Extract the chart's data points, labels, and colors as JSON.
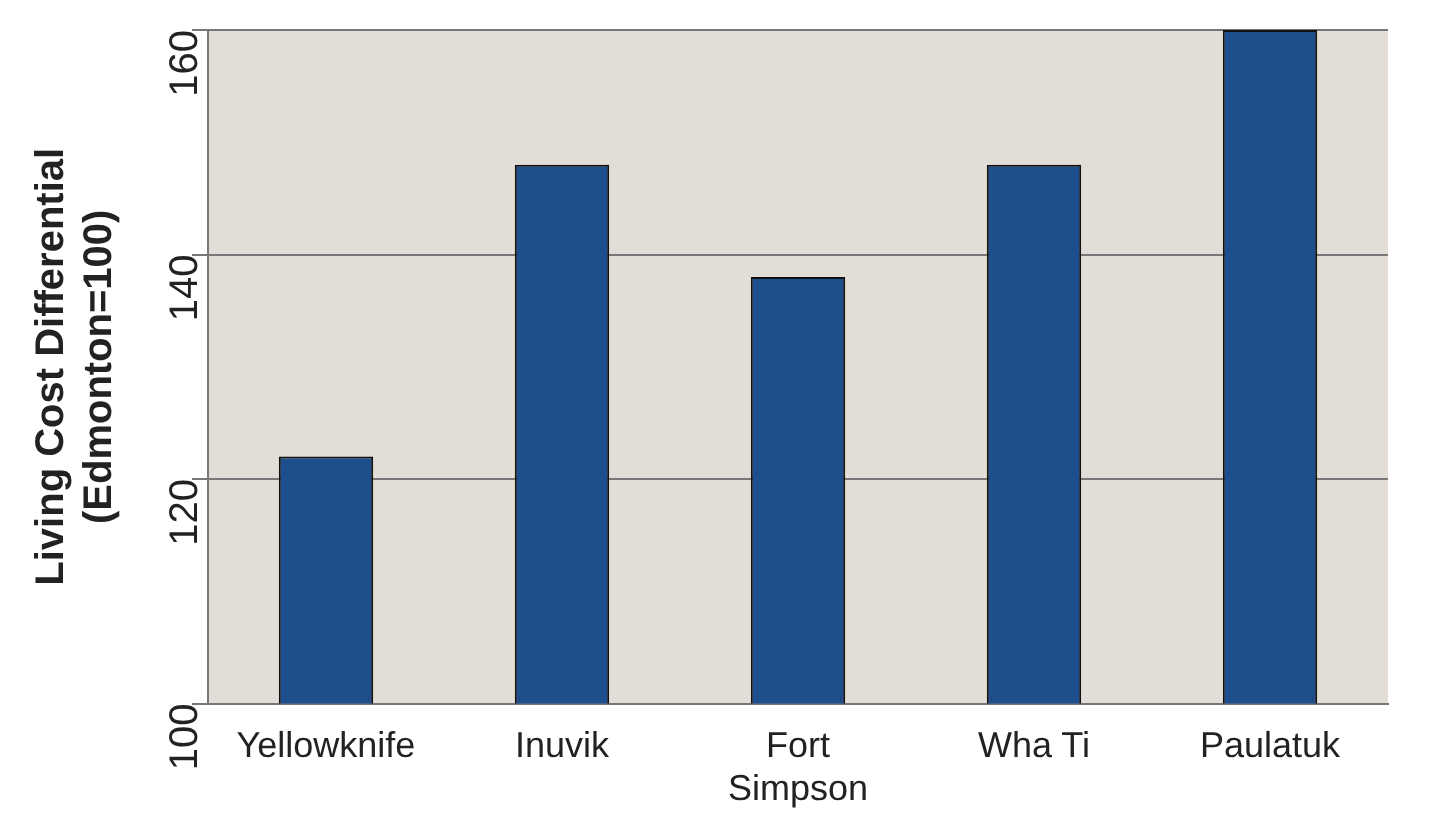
{
  "chart_data": {
    "type": "bar",
    "ylabel": "Living Cost Differential (Edmonton=100)",
    "categories": [
      "Yellowknife",
      "Inuvik",
      "Fort Simpson",
      "Wha Ti",
      "Paulatuk"
    ],
    "values": [
      122,
      148,
      138,
      148,
      160
    ],
    "color": "#1f4e8c",
    "ylim": [
      100,
      160
    ],
    "yticks": [
      100,
      120,
      140,
      160
    ],
    "grid": "y",
    "legend": false
  }
}
